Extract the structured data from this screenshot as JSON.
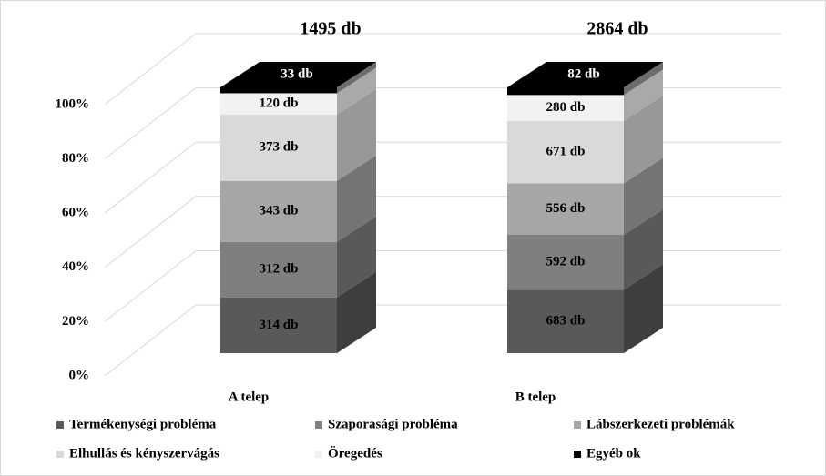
{
  "chart_data": {
    "type": "bar",
    "stacking": "percent",
    "categories": [
      "A telep",
      "B telep"
    ],
    "totals": [
      1495,
      2864
    ],
    "total_labels": [
      "1495 db",
      "2864 db"
    ],
    "series": [
      {
        "name": "Termékenységi probléma",
        "color": "#595959",
        "values": [
          314,
          683
        ],
        "value_labels": [
          "314 db",
          "683 db"
        ]
      },
      {
        "name": "Szaporasági probléma",
        "color": "#7f7f7f",
        "values": [
          312,
          592
        ],
        "value_labels": [
          "312 db",
          "592 db"
        ]
      },
      {
        "name": "Lábszerkezeti problémák",
        "color": "#a6a6a6",
        "values": [
          343,
          556
        ],
        "value_labels": [
          "343 db",
          "556 db"
        ]
      },
      {
        "name": "Elhullás és kényszervágás",
        "color": "#d9d9d9",
        "values": [
          373,
          671
        ],
        "value_labels": [
          "373 db",
          "671 db"
        ]
      },
      {
        "name": "Öregedés",
        "color": "#f2f2f2",
        "values": [
          120,
          280
        ],
        "value_labels": [
          "120 db",
          "280 db"
        ]
      },
      {
        "name": "Egyéb ok",
        "color": "#000000",
        "values": [
          33,
          82
        ],
        "value_labels": [
          "33 db",
          "82 db"
        ]
      }
    ],
    "ylim": [
      0,
      100
    ],
    "yticks": [
      {
        "value": 0,
        "label": "0%"
      },
      {
        "value": 20,
        "label": "20%"
      },
      {
        "value": 40,
        "label": "40%"
      },
      {
        "value": 60,
        "label": "60%"
      },
      {
        "value": 80,
        "label": "80%"
      },
      {
        "value": 100,
        "label": "100%"
      }
    ],
    "grid": true,
    "legend": "bottom"
  }
}
